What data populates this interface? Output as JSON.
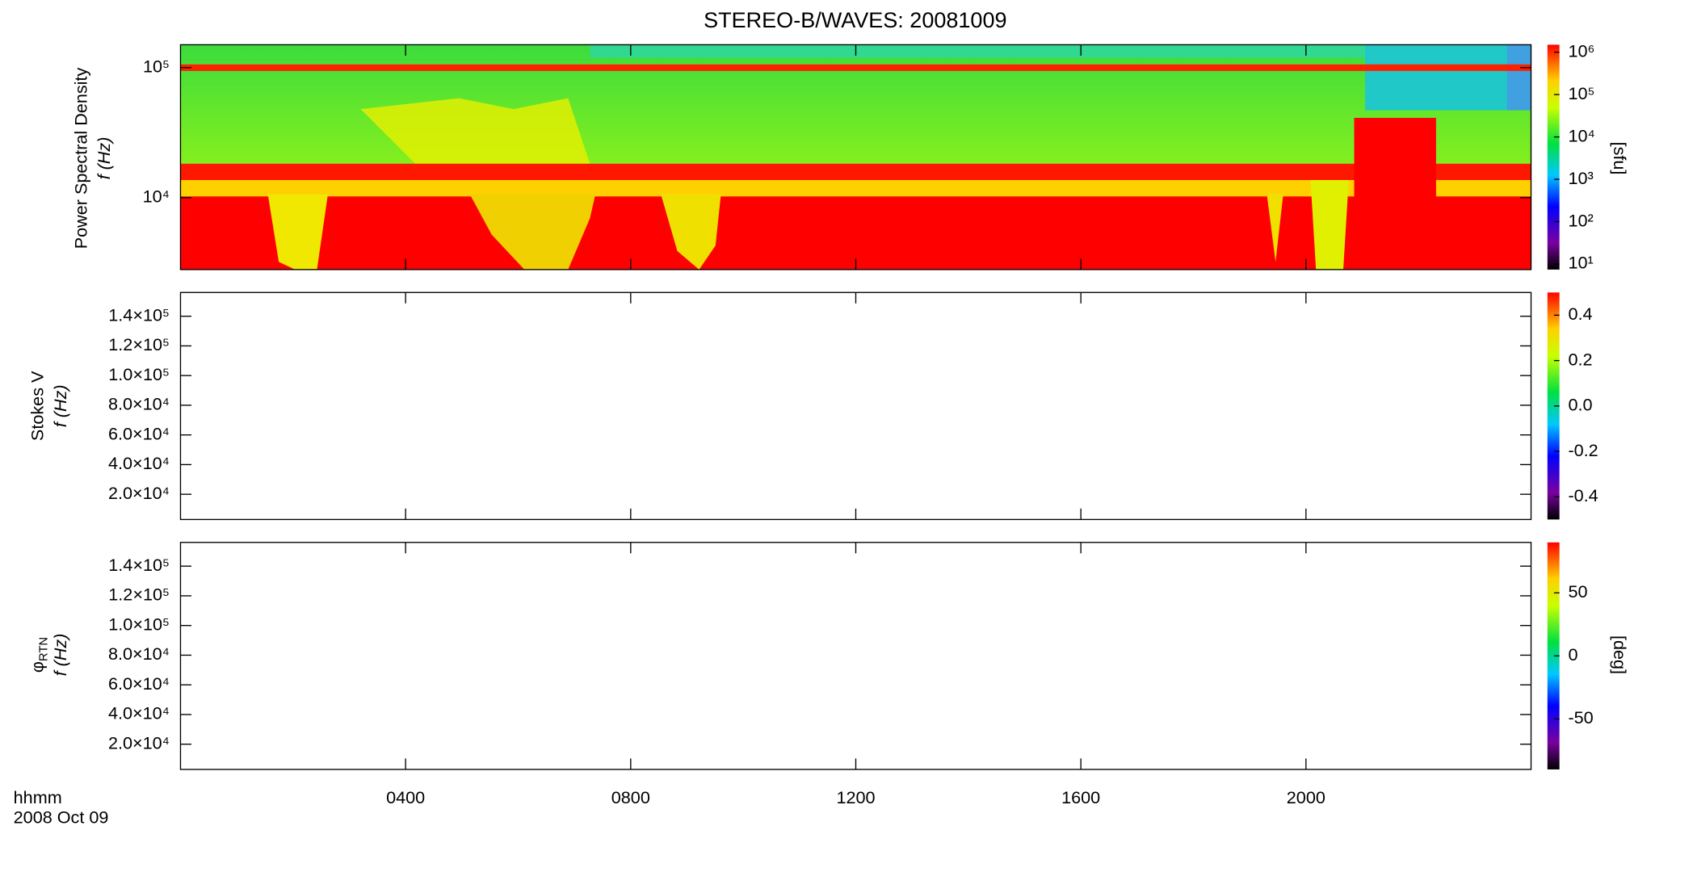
{
  "title": "STEREO-B/WAVES: 20081009",
  "x_axis": {
    "label": "hhmm",
    "date": "2008 Oct 09",
    "xlim": [
      0,
      24
    ],
    "xticks": [
      {
        "value": 4,
        "label": "0400"
      },
      {
        "value": 8,
        "label": "0800"
      },
      {
        "value": 12,
        "label": "1200"
      },
      {
        "value": 16,
        "label": "1600"
      },
      {
        "value": 20,
        "label": "2000"
      }
    ]
  },
  "chart_data": [
    {
      "type": "heatmap",
      "ylabel": [
        "Power Spectral Density",
        "f (Hz)"
      ],
      "log_y": true,
      "ylim": [
        2800,
        150000
      ],
      "yticks": [
        {
          "value": 10000,
          "label": "10⁴"
        },
        {
          "value": 100000,
          "label": "10⁵"
        }
      ],
      "colorbar": {
        "log": true,
        "clim": [
          7.4,
          1500000
        ],
        "label": "[sfu]",
        "ticks": [
          {
            "value": 10,
            "label": "10¹"
          },
          {
            "value": 100,
            "label": "10²"
          },
          {
            "value": 1000,
            "label": "10³"
          },
          {
            "value": 10000,
            "label": "10⁴"
          },
          {
            "value": 100000,
            "label": "10⁵"
          },
          {
            "value": 1000000,
            "label": "10⁶"
          }
        ]
      }
    },
    {
      "type": "heatmap",
      "ylabel": [
        "Stokes V",
        "f (Hz)"
      ],
      "log_y": false,
      "ylim": [
        3000,
        156000
      ],
      "yticks": [
        {
          "value": 20000,
          "label": "2.0×10⁴"
        },
        {
          "value": 40000,
          "label": "4.0×10⁴"
        },
        {
          "value": 60000,
          "label": "6.0×10⁴"
        },
        {
          "value": 80000,
          "label": "8.0×10⁴"
        },
        {
          "value": 100000,
          "label": "1.0×10⁵"
        },
        {
          "value": 120000,
          "label": "1.2×10⁵"
        },
        {
          "value": 140000,
          "label": "1.4×10⁵"
        }
      ],
      "colorbar": {
        "log": false,
        "clim": [
          -0.5,
          0.5
        ],
        "ticks": [
          -0.4,
          -0.2,
          {
            "value": 0,
            "label": "0.0"
          },
          0.2,
          0.4
        ]
      }
    },
    {
      "type": "heatmap",
      "ylabel_symbol": "φ",
      "ylabel_subscript": "RTN",
      "ylabel": [
        "f (Hz)"
      ],
      "log_y": false,
      "ylim": [
        3000,
        156000
      ],
      "yticks": [
        {
          "value": 20000,
          "label": "2.0×10⁴"
        },
        {
          "value": 40000,
          "label": "4.0×10⁴"
        },
        {
          "value": 60000,
          "label": "6.0×10⁴"
        },
        {
          "value": 80000,
          "label": "8.0×10⁴"
        },
        {
          "value": 100000,
          "label": "1.0×10⁵"
        },
        {
          "value": 120000,
          "label": "1.2×10⁵"
        },
        {
          "value": 140000,
          "label": "1.4×10⁵"
        }
      ],
      "colorbar": {
        "log": false,
        "clim": [
          -90,
          90
        ],
        "label": "[deg]",
        "ticks": [
          -50,
          0,
          50
        ]
      }
    }
  ]
}
